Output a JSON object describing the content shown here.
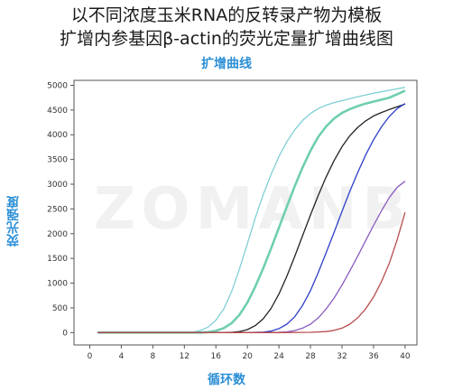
{
  "header": {
    "title_line1": "以不同浓度玉米RNA的反转录产物为模板",
    "title_line2": "扩增内参基因β-actin的荧光定量扩增曲线图"
  },
  "watermark": "ZOMANB",
  "chart_data": {
    "type": "line",
    "title": "扩增曲线",
    "xlabel": "循环数",
    "ylabel": "荧光强度",
    "xlim": [
      -2,
      41.5
    ],
    "ylim": [
      -250,
      5100
    ],
    "xticks": [
      0,
      4,
      8,
      12,
      16,
      20,
      24,
      28,
      32,
      36,
      40
    ],
    "yticks": [
      0,
      500,
      1000,
      1500,
      2000,
      2500,
      3000,
      3500,
      4000,
      4500,
      5000
    ],
    "grid": false,
    "series": [
      {
        "color": "#7fd0d6",
        "x": [
          1,
          4,
          8,
          12,
          13,
          14,
          15,
          16,
          17,
          18,
          19,
          20,
          21,
          22,
          23,
          24,
          25,
          26,
          27,
          28,
          29,
          30,
          31,
          32,
          33,
          34,
          36,
          38,
          40
        ],
        "y": [
          0,
          0,
          0,
          0,
          10,
          40,
          110,
          250,
          480,
          830,
          1290,
          1800,
          2320,
          2790,
          3200,
          3560,
          3860,
          4100,
          4290,
          4430,
          4530,
          4600,
          4650,
          4690,
          4730,
          4770,
          4840,
          4900,
          4960
        ]
      },
      {
        "color": "#6fcfae",
        "x": [
          1,
          4,
          8,
          12,
          14,
          15,
          16,
          17,
          18,
          19,
          20,
          21,
          22,
          23,
          24,
          25,
          26,
          27,
          28,
          29,
          30,
          31,
          32,
          33,
          34,
          35,
          36,
          38,
          40
        ],
        "y": [
          0,
          0,
          0,
          0,
          0,
          10,
          35,
          90,
          190,
          360,
          610,
          930,
          1300,
          1700,
          2120,
          2550,
          2960,
          3340,
          3680,
          3960,
          4170,
          4330,
          4440,
          4520,
          4580,
          4630,
          4670,
          4750,
          4890
        ]
      },
      {
        "color": "#222222",
        "x": [
          1,
          4,
          8,
          12,
          16,
          18,
          19,
          20,
          21,
          22,
          23,
          24,
          25,
          26,
          27,
          28,
          29,
          30,
          31,
          32,
          33,
          34,
          35,
          36,
          37,
          38,
          40
        ],
        "y": [
          0,
          0,
          0,
          0,
          0,
          5,
          20,
          60,
          140,
          280,
          490,
          780,
          1140,
          1540,
          1960,
          2380,
          2780,
          3150,
          3480,
          3760,
          3980,
          4150,
          4280,
          4380,
          4450,
          4510,
          4620
        ]
      },
      {
        "color": "#2d3fc8",
        "x": [
          1,
          4,
          8,
          12,
          16,
          20,
          22,
          23,
          24,
          25,
          26,
          27,
          28,
          29,
          30,
          31,
          32,
          33,
          34,
          35,
          36,
          37,
          38,
          39,
          40
        ],
        "y": [
          0,
          0,
          0,
          0,
          0,
          0,
          10,
          30,
          80,
          170,
          320,
          550,
          850,
          1220,
          1620,
          2030,
          2450,
          2860,
          3240,
          3590,
          3900,
          4160,
          4370,
          4530,
          4630
        ]
      },
      {
        "color": "#8a5ac0",
        "x": [
          1,
          4,
          8,
          12,
          16,
          20,
          24,
          25,
          26,
          27,
          28,
          29,
          30,
          31,
          32,
          33,
          34,
          35,
          36,
          37,
          38,
          39,
          40
        ],
        "y": [
          0,
          0,
          0,
          0,
          0,
          0,
          5,
          15,
          40,
          90,
          170,
          300,
          480,
          700,
          960,
          1250,
          1550,
          1860,
          2170,
          2460,
          2730,
          2940,
          3060
        ]
      },
      {
        "color": "#b84c4c",
        "x": [
          1,
          4,
          8,
          12,
          16,
          20,
          24,
          28,
          30,
          31,
          32,
          33,
          34,
          35,
          36,
          37,
          38,
          39,
          40
        ],
        "y": [
          0,
          0,
          0,
          0,
          0,
          0,
          0,
          5,
          20,
          45,
          90,
          170,
          300,
          480,
          720,
          1030,
          1400,
          1880,
          2430
        ]
      }
    ]
  }
}
